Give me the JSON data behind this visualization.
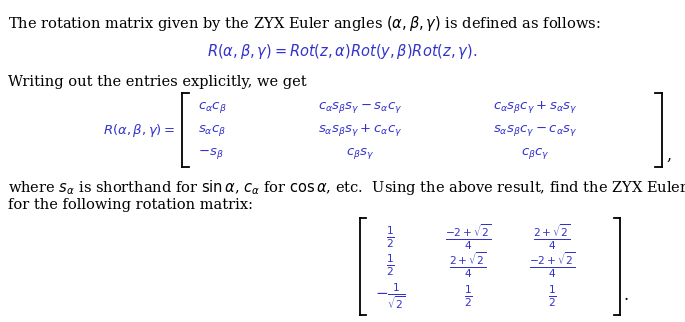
{
  "background_color": "#ffffff",
  "text_color": "#000000",
  "blue_color": "#3333cc",
  "fig_width": 6.85,
  "fig_height": 3.22,
  "dpi": 100,
  "font_size_body": 10.5,
  "font_size_eq": 10.5,
  "font_size_matrix": 9.5,
  "font_size_mat2": 9.0
}
